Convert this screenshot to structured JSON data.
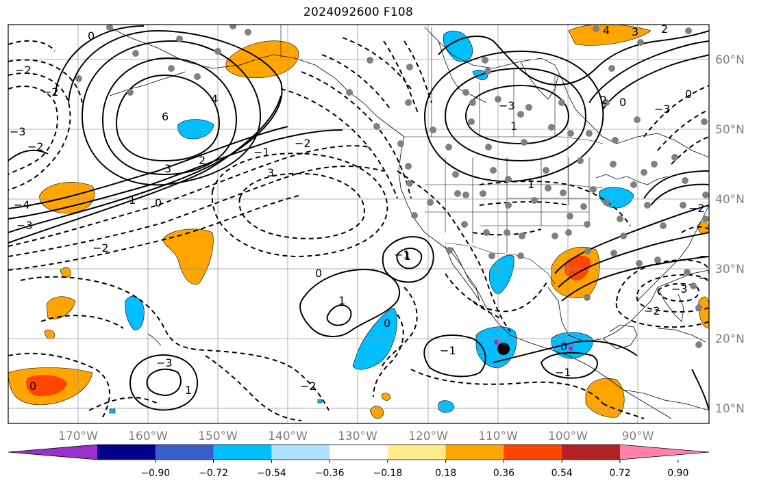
{
  "title": "2024092600 F108",
  "lon_labels": [
    "170°W",
    "160°W",
    "150°W",
    "140°W",
    "130°W",
    "120°W",
    "110°W",
    "100°W",
    "90°W"
  ],
  "lat_labels": [
    "60°N",
    "50°N",
    "40°N",
    "30°N",
    "20°N",
    "10°N"
  ],
  "colorbar": {
    "colors": [
      "#9932cc",
      "#00008b",
      "#3a5fcd",
      "#00bfff",
      "#b0e2ff",
      "#ffffff",
      "#ffec8b",
      "#ffa500",
      "#ff4500",
      "#b22222",
      "#ff82ab"
    ],
    "tick_labels": [
      "−0.90",
      "−0.72",
      "−0.54",
      "−0.36",
      "−0.18",
      "0.18",
      "0.36",
      "0.54",
      "0.72",
      "0.90"
    ]
  },
  "contour_labels": [
    "0",
    "4",
    "3",
    "2",
    "6",
    "4",
    "3",
    "2",
    "1",
    "0",
    "−2",
    "−3",
    "−2",
    "−4",
    "−3",
    "−2",
    "−1",
    "−2",
    "3",
    "1",
    "0",
    "2",
    "0",
    "1",
    "−3",
    "−3",
    "−2",
    "0",
    "−1",
    "1",
    "1",
    "0",
    "−1",
    "0",
    "−1",
    "−2",
    "−3",
    "−4",
    "−1",
    "−2",
    "−3",
    "0",
    "1",
    "−2"
  ]
}
